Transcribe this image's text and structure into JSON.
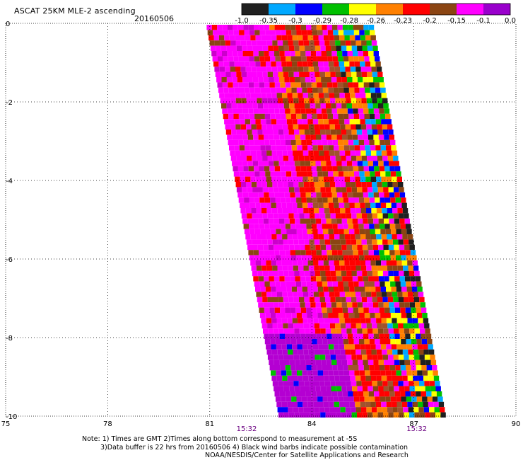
{
  "header": {
    "title": "ASCAT 25KM MLE-2 ascending",
    "date": "20160506"
  },
  "colorbar": {
    "labels": [
      "-1.0",
      "-0.35",
      "-0.3",
      "-0.29",
      "-0.28",
      "-0.26",
      "-0.23",
      "-0.2",
      "-0.15",
      "-0.1",
      "0.0"
    ],
    "colors": [
      "#202020",
      "#00a8ff",
      "#0000ff",
      "#00c000",
      "#ffff00",
      "#ff8000",
      "#ff0000",
      "#8b4513",
      "#ff00ff",
      "#9900cc"
    ]
  },
  "axes": {
    "x_ticks": [
      "75",
      "78",
      "81",
      "84",
      "87",
      "90"
    ],
    "y_ticks": [
      "0",
      "-2",
      "-4",
      "-6",
      "-8",
      "-10"
    ],
    "time_labels": [
      "15:32",
      "15:32"
    ]
  },
  "notes": {
    "line1": "Note: 1) Times are GMT 2)Times along bottom correspond to measurement at -5S",
    "line2": "3)Data buffer is 22 hrs from 20160506 4) Black wind barbs indicate possible contamination",
    "line3": "NOAA/NESDIS/Center for Satellite Applications and Research"
  }
}
